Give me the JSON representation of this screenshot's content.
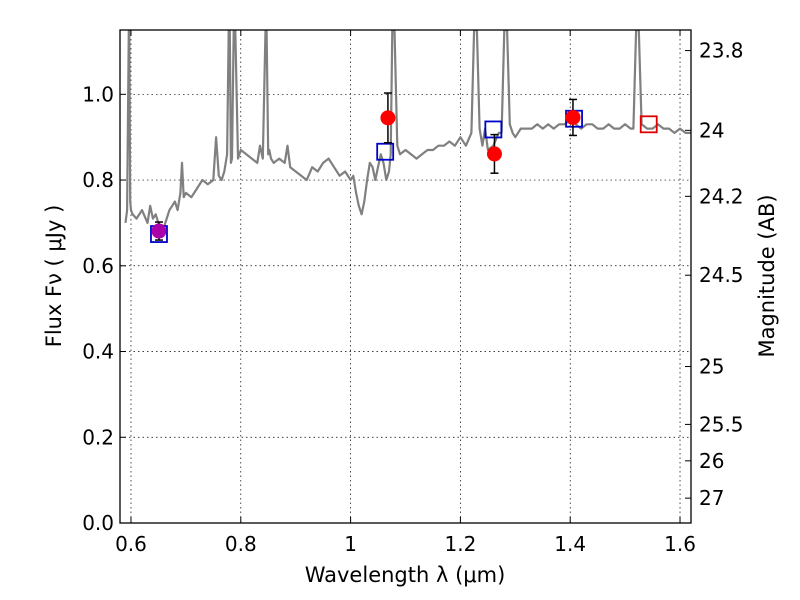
{
  "chart_data": {
    "type": "scatter",
    "xlabel": "Wavelength  λ (μm)",
    "ylabel": "Flux  Fν  ( μJy )",
    "y2label": "Magnitude (AB)",
    "xlim": [
      0.58,
      1.62
    ],
    "ylim": [
      0.0,
      1.15
    ],
    "grid": true,
    "x_ticks": [
      0.6,
      0.8,
      1.0,
      1.2,
      1.4,
      1.6
    ],
    "x_tick_labels": [
      "0.6",
      "0.8",
      "1",
      "1.2",
      "1.4",
      "1.6"
    ],
    "y_ticks": [
      0.0,
      0.2,
      0.4,
      0.6,
      0.8,
      1.0
    ],
    "y_tick_labels": [
      "0.0",
      "0.2",
      "0.4",
      "0.6",
      "0.8",
      "1.0"
    ],
    "y2_tick_labels": [
      {
        "label": "23.8",
        "flux": 1.102
      },
      {
        "label": "24",
        "flux": 0.916
      },
      {
        "label": "24.2",
        "flux": 0.762
      },
      {
        "label": "24.5",
        "flux": 0.578
      },
      {
        "label": "25",
        "flux": 0.365
      },
      {
        "label": "25.5",
        "flux": 0.23
      },
      {
        "label": "26",
        "flux": 0.145
      },
      {
        "label": "27",
        "flux": 0.058
      }
    ],
    "series": [
      {
        "style": "model-spectrum",
        "color": "#808080",
        "x": [
          0.59,
          0.593,
          0.596,
          0.597,
          0.5985,
          0.6,
          0.603,
          0.61,
          0.62,
          0.63,
          0.635,
          0.64,
          0.645,
          0.65,
          0.655,
          0.66,
          0.665,
          0.67,
          0.675,
          0.68,
          0.685,
          0.69,
          0.693,
          0.696,
          0.7,
          0.71,
          0.72,
          0.73,
          0.74,
          0.75,
          0.755,
          0.76,
          0.765,
          0.77,
          0.775,
          0.778,
          0.78,
          0.782,
          0.784,
          0.787,
          0.79,
          0.795,
          0.8,
          0.81,
          0.82,
          0.83,
          0.835,
          0.84,
          0.845,
          0.847,
          0.85,
          0.852,
          0.855,
          0.86,
          0.87,
          0.88,
          0.885,
          0.89,
          0.9,
          0.91,
          0.92,
          0.93,
          0.94,
          0.95,
          0.96,
          0.97,
          0.98,
          0.99,
          1.0,
          1.005,
          1.01,
          1.015,
          1.02,
          1.025,
          1.03,
          1.035,
          1.04,
          1.045,
          1.05,
          1.055,
          1.06,
          1.065,
          1.07,
          1.073,
          1.076,
          1.08,
          1.085,
          1.09,
          1.1,
          1.11,
          1.12,
          1.13,
          1.14,
          1.15,
          1.16,
          1.17,
          1.18,
          1.19,
          1.2,
          1.21,
          1.22,
          1.225,
          1.23,
          1.235,
          1.24,
          1.245,
          1.25,
          1.26,
          1.27,
          1.275,
          1.28,
          1.285,
          1.29,
          1.295,
          1.3,
          1.31,
          1.32,
          1.33,
          1.34,
          1.35,
          1.36,
          1.37,
          1.38,
          1.39,
          1.4,
          1.41,
          1.42,
          1.43,
          1.44,
          1.45,
          1.46,
          1.47,
          1.48,
          1.49,
          1.5,
          1.51,
          1.515,
          1.52,
          1.525,
          1.53,
          1.54,
          1.55,
          1.56,
          1.57,
          1.58,
          1.59,
          1.6,
          1.61,
          1.62
        ],
        "y": [
          0.7,
          0.73,
          1.15,
          1.15,
          0.75,
          0.73,
          0.72,
          0.71,
          0.73,
          0.7,
          0.74,
          0.71,
          0.72,
          0.7,
          0.68,
          0.69,
          0.71,
          0.73,
          0.74,
          0.75,
          0.73,
          0.77,
          0.84,
          0.76,
          0.77,
          0.76,
          0.78,
          0.8,
          0.79,
          0.8,
          0.9,
          0.81,
          0.8,
          0.82,
          0.86,
          1.15,
          1.15,
          0.84,
          0.85,
          1.15,
          1.15,
          0.85,
          0.87,
          0.86,
          0.85,
          0.84,
          0.88,
          0.85,
          1.15,
          1.15,
          0.86,
          0.87,
          0.85,
          0.84,
          0.85,
          0.84,
          0.88,
          0.83,
          0.82,
          0.81,
          0.8,
          0.83,
          0.82,
          0.84,
          0.85,
          0.83,
          0.81,
          0.82,
          0.8,
          0.81,
          0.77,
          0.74,
          0.72,
          0.75,
          0.8,
          0.84,
          0.83,
          0.8,
          0.83,
          0.86,
          0.84,
          0.8,
          0.82,
          0.86,
          1.15,
          1.15,
          0.88,
          0.86,
          0.87,
          0.86,
          0.85,
          0.86,
          0.87,
          0.87,
          0.88,
          0.88,
          0.89,
          0.88,
          0.9,
          0.88,
          0.91,
          1.15,
          1.15,
          0.92,
          0.88,
          0.92,
          0.87,
          0.88,
          0.91,
          0.91,
          1.15,
          1.15,
          0.93,
          0.91,
          0.9,
          0.92,
          0.92,
          0.92,
          0.93,
          0.92,
          0.93,
          0.92,
          0.93,
          0.93,
          0.94,
          0.93,
          0.92,
          0.93,
          0.93,
          0.92,
          0.92,
          0.93,
          0.92,
          0.92,
          0.93,
          0.92,
          0.92,
          1.15,
          1.15,
          0.93,
          0.92,
          0.92,
          0.93,
          0.92,
          0.92,
          0.91,
          0.92,
          0.91,
          0.91
        ]
      },
      {
        "style": "observed",
        "color": "#ff0000",
        "x": [
          0.651,
          1.068,
          1.262,
          1.405
        ],
        "y": [
          0.681,
          0.945,
          0.861,
          0.946
        ],
        "yerr": [
          0.021,
          0.058,
          0.045,
          0.042
        ]
      },
      {
        "style": "model-photometry",
        "color": "#0000cc",
        "x": [
          0.651,
          1.063,
          1.26,
          1.407,
          1.543
        ],
        "y": [
          0.674,
          0.866,
          0.918,
          0.943,
          0.93
        ],
        "box_colors": [
          "#0000cc",
          "#0000cc",
          "#0000cc",
          "#0000cc",
          "#dd0000"
        ]
      }
    ],
    "overlap_marker_color": "#aa00aa"
  }
}
